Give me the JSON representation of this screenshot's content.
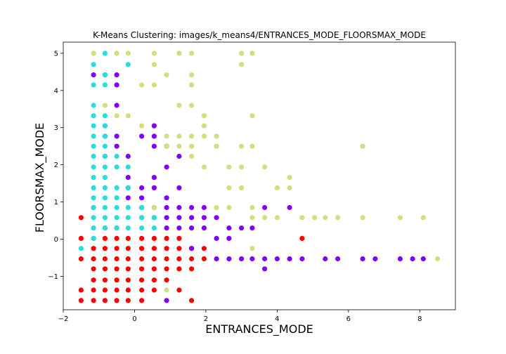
{
  "chart_data": {
    "type": "scatter",
    "title": "K-Means Clustering: images/k_means4/ENTRANCES_MODE_FLOORSMAX_MODE",
    "xlabel": "ENTRANCES_MODE",
    "ylabel": "FLOORSMAX_MODE",
    "xlim": [
      -2,
      9
    ],
    "ylim": [
      -1.9,
      5.3
    ],
    "xticks": [
      -2,
      0,
      2,
      4,
      6,
      8
    ],
    "xtick_labels": [
      "−2",
      "0",
      "2",
      "4",
      "6",
      "8"
    ],
    "yticks": [
      -1,
      0,
      1,
      2,
      3,
      4,
      5
    ],
    "ytick_labels": [
      "−1",
      "0",
      "1",
      "2",
      "3",
      "4",
      "5"
    ],
    "grid": false,
    "legend": "none",
    "colors": {
      "red": "#ff0000",
      "purple": "#8000ff",
      "cyan": "#2adddd",
      "khaki": "#d4dd80"
    },
    "series": [
      {
        "color_key": "red",
        "x": [
          -1.5,
          -1.5,
          -1.5,
          -1.5,
          -1.5,
          -1.15,
          -1.15,
          -1.15,
          -1.15,
          -1.15,
          -1.15,
          -1.15,
          -1.15,
          -0.83,
          -0.83,
          -0.83,
          -0.83,
          -0.83,
          -0.83,
          -0.83,
          -0.83,
          -0.5,
          -0.5,
          -0.5,
          -0.5,
          -0.5,
          -0.5,
          -0.5,
          -0.5,
          -0.18,
          -0.18,
          -0.18,
          -0.18,
          -0.18,
          -0.18,
          -0.18,
          0.2,
          0.2,
          0.2,
          0.2,
          0.2,
          0.2,
          0.2,
          0.55,
          0.55,
          0.55,
          0.55,
          0.55,
          0.55,
          0.9,
          0.9,
          0.9,
          0.9,
          0.9,
          1.25,
          1.25,
          1.25,
          1.25,
          1.25,
          1.6,
          1.6,
          1.6,
          1.6,
          1.95,
          1.95,
          4.7,
          -1.15
        ],
        "y": [
          0.58,
          -1.37,
          -1.65,
          -0.53,
          0.02,
          0.02,
          -0.25,
          -0.53,
          -0.8,
          -1.1,
          -1.37,
          -1.65,
          0.85,
          0.02,
          -0.25,
          -0.53,
          -0.8,
          -1.1,
          -1.37,
          -1.65,
          0.3,
          0.02,
          -0.25,
          -0.53,
          -0.8,
          -1.1,
          -1.37,
          -1.65,
          0.3,
          0.02,
          -0.25,
          -0.53,
          -0.8,
          -1.1,
          -1.37,
          -1.65,
          0.02,
          -0.25,
          -0.53,
          -0.8,
          -1.1,
          -1.37,
          -1.65,
          0.02,
          -0.25,
          -0.53,
          -0.8,
          -1.1,
          -1.37,
          0.02,
          -0.25,
          -0.53,
          -0.8,
          -1.1,
          0.02,
          -0.25,
          -0.53,
          -0.8,
          -1.37,
          -0.25,
          -0.53,
          -0.8,
          -1.65,
          -0.25,
          -0.53,
          0.02,
          -0.53
        ]
      },
      {
        "color_key": "purple",
        "x": [
          -1.15,
          -0.83,
          -0.83,
          -0.83,
          -0.5,
          -0.5,
          -0.5,
          -0.5,
          -0.18,
          -0.18,
          -0.18,
          0.2,
          0.2,
          0.2,
          0.2,
          0.2,
          0.55,
          0.55,
          0.55,
          0.55,
          0.55,
          0.55,
          0.9,
          0.9,
          0.9,
          0.9,
          0.9,
          0.9,
          1.25,
          1.25,
          1.25,
          1.25,
          1.6,
          1.6,
          1.6,
          1.6,
          1.95,
          1.95,
          1.95,
          2.3,
          2.3,
          2.3,
          2.65,
          2.65,
          2.65,
          3.0,
          3.0,
          3.3,
          3.3,
          3.65,
          3.65,
          3.65,
          4.0,
          4.35,
          4.35,
          4.7,
          5.35,
          5.7,
          6.4,
          6.75,
          7.45,
          7.8,
          8.1,
          0.9,
          0.55,
          1.25,
          -0.83,
          -0.5,
          -0.18
        ],
        "y": [
          4.42,
          4.42,
          2.77,
          2.23,
          4.42,
          4.15,
          3.6,
          2.77,
          1.66,
          1.38,
          1.11,
          2.77,
          1.38,
          1.11,
          0.85,
          0.58,
          3.05,
          2.5,
          1.66,
          1.38,
          0.85,
          0.58,
          2.5,
          1.94,
          1.11,
          0.85,
          0.58,
          0.3,
          1.38,
          0.85,
          0.58,
          0.3,
          0.85,
          0.58,
          0.3,
          -0.25,
          0.85,
          0.58,
          0.3,
          0.58,
          0.02,
          -0.53,
          0.3,
          0.02,
          -0.53,
          0.3,
          -0.53,
          0.3,
          -0.53,
          0.85,
          -0.53,
          -0.8,
          -0.53,
          0.85,
          -0.53,
          -0.53,
          -0.53,
          -0.53,
          -0.53,
          -0.53,
          -0.53,
          -0.53,
          -0.53,
          -1.65,
          2.77,
          2.23,
          3.05,
          2.5,
          2.23
        ]
      },
      {
        "color_key": "cyan",
        "x": [
          -1.5,
          -1.15,
          -1.15,
          -1.15,
          -1.15,
          -1.15,
          -1.15,
          -1.15,
          -1.15,
          -1.15,
          -1.15,
          -1.15,
          -1.15,
          -1.15,
          -1.15,
          -1.15,
          -1.15,
          -1.15,
          -0.83,
          -0.83,
          -0.83,
          -0.83,
          -0.83,
          -0.83,
          -0.83,
          -0.83,
          -0.83,
          -0.83,
          -0.83,
          -0.83,
          -0.83,
          -0.83,
          -0.83,
          -0.5,
          -0.5,
          -0.5,
          -0.5,
          -0.5,
          -0.5,
          -0.5,
          -0.18,
          -0.18,
          -0.18,
          -0.18,
          -0.18,
          -0.18,
          0.2,
          0.2,
          0.2,
          0.55,
          0.55
        ],
        "y": [
          -0.25,
          0.02,
          0.3,
          0.58,
          0.85,
          1.11,
          1.38,
          1.66,
          1.94,
          2.23,
          2.5,
          2.77,
          3.05,
          3.32,
          3.6,
          4.15,
          4.7,
          5.0,
          0.3,
          0.58,
          0.85,
          1.11,
          1.38,
          1.66,
          1.94,
          2.23,
          2.5,
          2.77,
          3.05,
          3.32,
          4.15,
          4.42,
          5.0,
          0.3,
          0.58,
          0.85,
          1.11,
          1.38,
          1.94,
          2.23,
          4.7,
          1.94,
          1.38,
          0.85,
          0.58,
          0.3,
          0.3,
          0.58,
          0.85,
          0.3,
          0.58
        ]
      },
      {
        "color_key": "khaki",
        "x": [
          -1.15,
          -0.83,
          -0.5,
          -0.18,
          0.55,
          0.55,
          1.25,
          1.6,
          1.6,
          1.6,
          1.6,
          3.0,
          3.0,
          3.3,
          0.2,
          0.55,
          0.9,
          0.9,
          0.9,
          1.25,
          1.25,
          1.25,
          1.6,
          1.6,
          1.6,
          1.95,
          1.95,
          1.95,
          1.95,
          2.3,
          2.3,
          2.65,
          3.0,
          3.0,
          3.3,
          3.3,
          3.3,
          3.65,
          4.0,
          4.35,
          4.35,
          4.7,
          5.05,
          5.35,
          5.7,
          6.4,
          6.4,
          7.45,
          8.1,
          2.65,
          2.65,
          3.0,
          3.3,
          3.65,
          4.0,
          2.3,
          3.3,
          8.5,
          0.9,
          -0.5,
          -0.18,
          0.2,
          0.55
        ],
        "y": [
          5.0,
          3.6,
          5.0,
          5.0,
          5.0,
          4.7,
          5.0,
          5.0,
          4.42,
          4.15,
          3.6,
          5.0,
          4.7,
          5.0,
          4.15,
          4.15,
          4.42,
          2.77,
          2.5,
          3.6,
          2.77,
          2.5,
          2.77,
          2.5,
          2.23,
          3.32,
          3.05,
          2.77,
          1.94,
          2.77,
          2.5,
          1.94,
          2.5,
          1.94,
          2.5,
          0.85,
          0.58,
          1.94,
          1.38,
          1.66,
          1.38,
          0.58,
          0.58,
          0.58,
          0.58,
          0.58,
          2.5,
          0.58,
          0.58,
          1.38,
          0.85,
          1.38,
          3.32,
          0.58,
          0.58,
          0.85,
          -0.25,
          -0.53,
          -1.37,
          3.32,
          3.32,
          3.05,
          0.85
        ]
      }
    ]
  }
}
